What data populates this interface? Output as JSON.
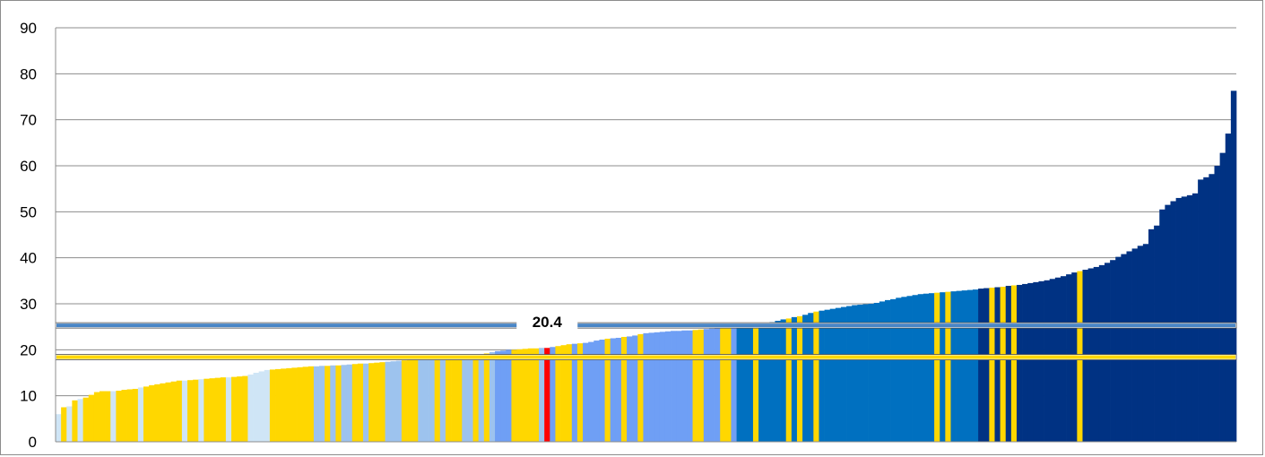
{
  "colors": {
    "background": "#ffffff",
    "gridline": "#8c8c8c",
    "axis": "#8c8c8c",
    "highlight": "#ff0000",
    "group_colors": {
      "yellow": "#ffd700",
      "paleblue": "#cfe5f6",
      "lightblue": "#9dc3ee",
      "mediumblue": "#6f9ff5",
      "blue": "#0070c0",
      "navy": "#003283"
    },
    "blue_reference_line": "#4a86c6",
    "yellow_reference_line": "#ffd700"
  },
  "chart_data": {
    "type": "bar",
    "title": "",
    "xlabel": "",
    "ylabel": "",
    "ylim": [
      0,
      90
    ],
    "yticks": [
      0,
      10,
      20,
      30,
      40,
      50,
      60,
      70,
      80,
      90
    ],
    "grid": true,
    "legend": "none",
    "reference_lines": [
      {
        "value": 25.3,
        "color": "blue_reference_line"
      },
      {
        "value": 18.4,
        "color": "yellow_reference_line"
      }
    ],
    "callout": {
      "label": "20.4",
      "at_value": 25.3
    },
    "highlight_value": 20.4,
    "bar_groups": [
      {
        "color": "paleblue",
        "values": [
          6.0
        ]
      },
      {
        "color": "yellow",
        "values": [
          7.5
        ]
      },
      {
        "color": "paleblue",
        "values": [
          7.7
        ]
      },
      {
        "color": "yellow",
        "values": [
          9.0
        ]
      },
      {
        "color": "paleblue",
        "values": [
          9.3
        ]
      },
      {
        "color": "yellow",
        "values": [
          9.6,
          10.2,
          10.8,
          11.0,
          11.0
        ]
      },
      {
        "color": "paleblue",
        "values": [
          11.0
        ]
      },
      {
        "color": "yellow",
        "values": [
          11.1,
          11.3,
          11.4,
          11.5
        ]
      },
      {
        "color": "paleblue",
        "values": [
          11.8
        ]
      },
      {
        "color": "yellow",
        "values": [
          12.0,
          12.3,
          12.5,
          12.7,
          12.9,
          13.1,
          13.3
        ]
      },
      {
        "color": "paleblue",
        "values": [
          13.3
        ]
      },
      {
        "color": "yellow",
        "values": [
          13.4,
          13.5
        ]
      },
      {
        "color": "paleblue",
        "values": [
          13.6
        ]
      },
      {
        "color": "yellow",
        "values": [
          13.7,
          13.8,
          13.9,
          14.0
        ]
      },
      {
        "color": "paleblue",
        "values": [
          14.0
        ]
      },
      {
        "color": "yellow",
        "values": [
          14.1,
          14.2,
          14.3
        ]
      },
      {
        "color": "paleblue",
        "values": [
          14.6,
          15.0,
          15.3,
          15.6
        ]
      },
      {
        "color": "yellow",
        "values": [
          15.7,
          15.8,
          15.9,
          16.0,
          16.1,
          16.2,
          16.3,
          16.4
        ]
      },
      {
        "color": "lightblue",
        "values": [
          16.4,
          16.5
        ]
      },
      {
        "color": "yellow",
        "values": [
          16.5
        ]
      },
      {
        "color": "lightblue",
        "values": [
          16.6
        ]
      },
      {
        "color": "yellow",
        "values": [
          16.6
        ]
      },
      {
        "color": "lightblue",
        "values": [
          16.7,
          16.8
        ]
      },
      {
        "color": "yellow",
        "values": [
          16.9,
          17.0
        ]
      },
      {
        "color": "lightblue",
        "values": [
          17.0
        ]
      },
      {
        "color": "yellow",
        "values": [
          17.1,
          17.2,
          17.3
        ]
      },
      {
        "color": "lightblue",
        "values": [
          17.4,
          17.5,
          17.6
        ]
      },
      {
        "color": "yellow",
        "values": [
          17.7,
          17.8,
          17.9
        ]
      },
      {
        "color": "lightblue",
        "values": [
          17.9,
          18.0,
          18.1
        ]
      },
      {
        "color": "yellow",
        "values": [
          18.1
        ]
      },
      {
        "color": "lightblue",
        "values": [
          18.2
        ]
      },
      {
        "color": "yellow",
        "values": [
          18.3,
          18.5,
          18.6
        ]
      },
      {
        "color": "lightblue",
        "values": [
          18.7,
          18.8
        ]
      },
      {
        "color": "yellow",
        "values": [
          18.9
        ]
      },
      {
        "color": "lightblue",
        "values": [
          19.0
        ]
      },
      {
        "color": "yellow",
        "values": [
          19.2
        ]
      },
      {
        "color": "lightblue",
        "values": [
          19.5
        ]
      },
      {
        "color": "mediumblue",
        "values": [
          19.7,
          19.8,
          20.0
        ]
      },
      {
        "color": "yellow",
        "values": [
          20.0,
          20.1,
          20.2,
          20.3,
          20.3
        ]
      },
      {
        "color": "lightblue",
        "values": [
          20.4
        ]
      },
      {
        "color": "highlight",
        "values": [
          20.4
        ]
      },
      {
        "color": "mediumblue",
        "values": [
          20.6
        ]
      },
      {
        "color": "yellow",
        "values": [
          20.8,
          21.0,
          21.2
        ]
      },
      {
        "color": "mediumblue",
        "values": [
          21.3
        ]
      },
      {
        "color": "yellow",
        "values": [
          21.4
        ]
      },
      {
        "color": "mediumblue",
        "values": [
          21.5,
          21.7,
          22.0,
          22.2
        ]
      },
      {
        "color": "yellow",
        "values": [
          22.4
        ]
      },
      {
        "color": "mediumblue",
        "values": [
          22.5,
          22.6
        ]
      },
      {
        "color": "yellow",
        "values": [
          22.8
        ]
      },
      {
        "color": "mediumblue",
        "values": [
          22.9,
          23.1
        ]
      },
      {
        "color": "yellow",
        "values": [
          23.4
        ]
      },
      {
        "color": "mediumblue",
        "values": [
          23.6,
          23.7,
          23.8,
          23.9,
          24.0,
          24.1,
          24.1,
          24.2,
          24.2
        ]
      },
      {
        "color": "yellow",
        "values": [
          24.3,
          24.4
        ]
      },
      {
        "color": "mediumblue",
        "values": [
          24.5,
          24.6,
          24.7
        ]
      },
      {
        "color": "yellow",
        "values": [
          24.8,
          24.9
        ]
      },
      {
        "color": "mediumblue",
        "values": [
          25.0
        ]
      },
      {
        "color": "blue",
        "values": [
          25.1,
          25.2,
          25.3
        ]
      },
      {
        "color": "yellow",
        "values": [
          25.3
        ]
      },
      {
        "color": "blue",
        "values": [
          25.5,
          25.7,
          26.0,
          26.3,
          26.6
        ]
      },
      {
        "color": "yellow",
        "values": [
          26.8
        ]
      },
      {
        "color": "blue",
        "values": [
          27.1
        ]
      },
      {
        "color": "yellow",
        "values": [
          27.3
        ]
      },
      {
        "color": "blue",
        "values": [
          27.6,
          28.0
        ]
      },
      {
        "color": "yellow",
        "values": [
          28.3
        ]
      },
      {
        "color": "blue",
        "values": [
          28.5,
          28.7,
          28.9,
          29.1,
          29.3,
          29.5,
          29.7,
          29.8,
          29.9,
          30.0,
          30.2,
          30.5,
          30.8,
          31.0,
          31.3,
          31.5,
          31.7,
          31.9,
          32.1,
          32.2,
          32.3
        ]
      },
      {
        "color": "yellow",
        "values": [
          32.4
        ]
      },
      {
        "color": "blue",
        "values": [
          32.5
        ]
      },
      {
        "color": "yellow",
        "values": [
          32.6
        ]
      },
      {
        "color": "blue",
        "values": [
          32.7,
          32.8,
          32.9,
          33.0,
          33.1
        ]
      },
      {
        "color": "navy",
        "values": [
          33.3,
          33.4
        ]
      },
      {
        "color": "yellow",
        "values": [
          33.5
        ]
      },
      {
        "color": "navy",
        "values": [
          33.6
        ]
      },
      {
        "color": "yellow",
        "values": [
          33.7
        ]
      },
      {
        "color": "navy",
        "values": [
          33.9
        ]
      },
      {
        "color": "yellow",
        "values": [
          34.0
        ]
      },
      {
        "color": "navy",
        "values": [
          34.1,
          34.3,
          34.5,
          34.7,
          34.9,
          35.1,
          35.4,
          35.7,
          36.0,
          36.4,
          36.8
        ]
      },
      {
        "color": "yellow",
        "values": [
          37.1
        ]
      },
      {
        "color": "navy",
        "values": [
          37.4,
          37.7,
          38.0,
          38.4,
          38.9,
          39.5,
          40.2,
          40.8,
          41.4,
          42.0,
          42.6,
          43.0,
          46.2,
          47.0,
          50.5,
          51.5,
          52.3,
          53.0,
          53.3,
          53.6,
          54.0,
          57.0,
          57.5,
          58.2,
          60.0,
          62.8,
          67.0,
          76.3
        ]
      }
    ]
  }
}
